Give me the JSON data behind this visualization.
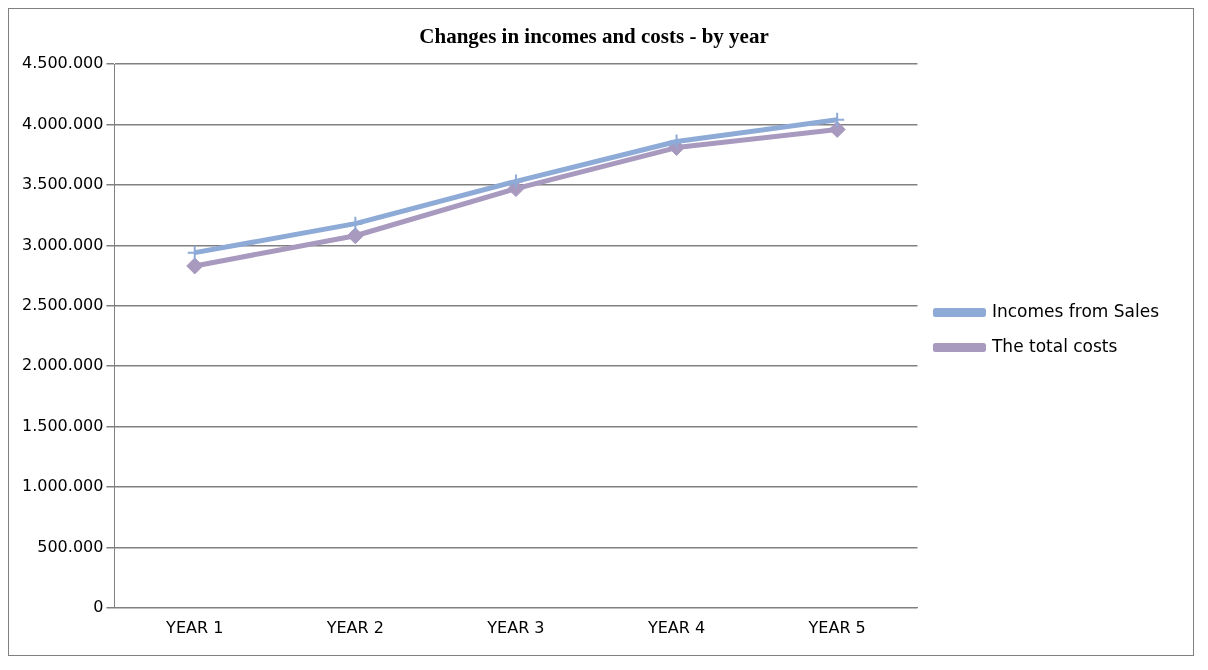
{
  "chart_data": {
    "type": "line",
    "title": "Changes in incomes and costs - by year",
    "categories": [
      "YEAR 1",
      "YEAR 2",
      "YEAR 3",
      "YEAR 4",
      "YEAR 5"
    ],
    "series": [
      {
        "name": "Incomes from Sales",
        "color": "#8eaad6",
        "marker": "cross",
        "values": [
          2940000,
          3180000,
          3530000,
          3860000,
          4040000
        ]
      },
      {
        "name": "The total costs",
        "color": "#a899bf",
        "marker": "diamond",
        "values": [
          2830000,
          3080000,
          3470000,
          3810000,
          3960000
        ]
      }
    ],
    "ylim": [
      0,
      4500000
    ],
    "yticks": [
      {
        "value": 0,
        "label": "0"
      },
      {
        "value": 500000,
        "label": "500.000"
      },
      {
        "value": 1000000,
        "label": "1.000.000"
      },
      {
        "value": 1500000,
        "label": "1.500.000"
      },
      {
        "value": 2000000,
        "label": "2.000.000"
      },
      {
        "value": 2500000,
        "label": "2.500.000"
      },
      {
        "value": 3000000,
        "label": "3.000.000"
      },
      {
        "value": 3500000,
        "label": "3.500.000"
      },
      {
        "value": 4000000,
        "label": "4.000.000"
      },
      {
        "value": 4500000,
        "label": "4.500.000"
      }
    ],
    "grid": "y",
    "legend": "right",
    "line_style": "solid"
  }
}
